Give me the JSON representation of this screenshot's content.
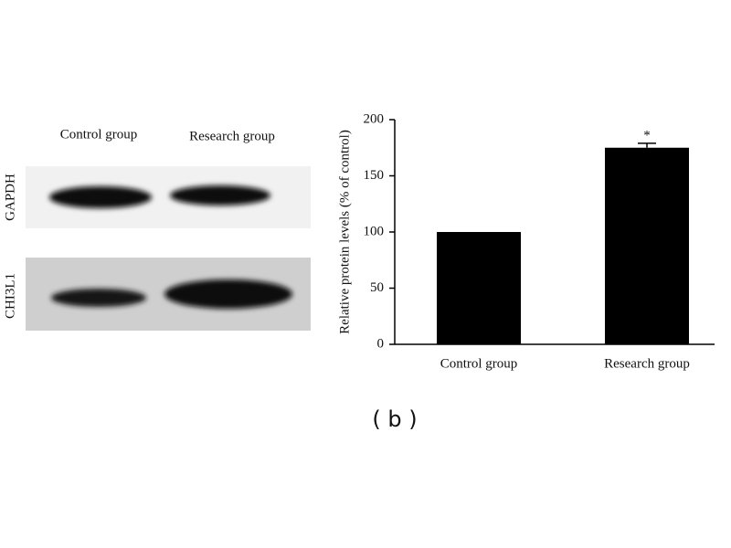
{
  "blot": {
    "columns": [
      "Control group",
      "Research group"
    ],
    "rows": [
      "GAPDH",
      "CHI3L1"
    ]
  },
  "panel_label": "( b )",
  "chart_data": {
    "type": "bar",
    "y_label": "Relative protein levels (% of control)",
    "categories": [
      "Control group",
      "Research group"
    ],
    "values": [
      100,
      175
    ],
    "errors": [
      null,
      4
    ],
    "significance": [
      null,
      "*"
    ],
    "color": "#000000",
    "ylim": [
      0,
      200
    ],
    "yticks": [
      0,
      50,
      100,
      150,
      200
    ],
    "grid": false
  }
}
